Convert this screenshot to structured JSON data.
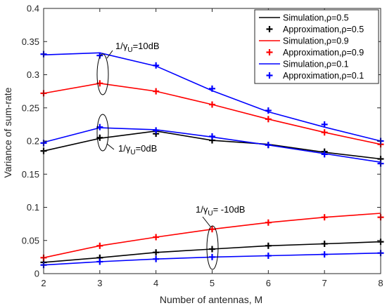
{
  "chart_data": {
    "type": "line",
    "xlabel": "Number of antennas, M",
    "ylabel": "Variance of sum-rate",
    "xlim": [
      2,
      8
    ],
    "ylim": [
      0,
      0.4
    ],
    "x_ticks": [
      "2",
      "3",
      "4",
      "5",
      "6",
      "7",
      "8"
    ],
    "y_ticks": [
      "0",
      "0.05",
      "0.1",
      "0.15",
      "0.2",
      "0.25",
      "0.3",
      "0.35",
      "0.4"
    ],
    "x": [
      2,
      3,
      4,
      5,
      6,
      7,
      8
    ],
    "grid": false,
    "legend_position": "top-right",
    "legend": [
      {
        "label": "Simulation,ρ=0.5",
        "color": "#000000",
        "kind": "line"
      },
      {
        "label": "Approximation,ρ=0.5",
        "color": "#000000",
        "kind": "marker"
      },
      {
        "label": "Simulation,ρ=0.9",
        "color": "#ff0000",
        "kind": "line"
      },
      {
        "label": "Approximation,ρ=0.9",
        "color": "#ff0000",
        "kind": "marker"
      },
      {
        "label": "Simulation,ρ=0.1",
        "color": "#0000ff",
        "kind": "line"
      },
      {
        "label": "Approximation,ρ=0.1",
        "color": "#0000ff",
        "kind": "marker"
      }
    ],
    "groups": [
      {
        "annotation": "1/γU=10dB",
        "series": [
          {
            "color": "#000000",
            "simulation": [],
            "approximation": []
          },
          {
            "color": "#ff0000",
            "simulation": [
              0.272,
              0.287,
              0.275,
              0.255,
              0.233,
              0.213,
              0.195
            ],
            "approximation": [
              0.272,
              0.287,
              0.275,
              0.255,
              0.233,
              0.213,
              0.195
            ]
          },
          {
            "color": "#0000ff",
            "simulation": [
              0.33,
              0.333,
              0.313,
              0.276,
              0.244,
              0.221,
              0.2
            ],
            "approximation": [
              0.331,
              0.329,
              0.314,
              0.279,
              0.246,
              0.225,
              0.2
            ]
          }
        ]
      },
      {
        "annotation": "1/γU=0dB",
        "series": [
          {
            "color": "#000000",
            "simulation": [
              0.185,
              0.204,
              0.215,
              0.201,
              0.195,
              0.183,
              0.173
            ],
            "approximation": [
              0.185,
              0.205,
              0.211,
              0.201,
              0.194,
              0.184,
              0.173
            ]
          },
          {
            "color": "#ff0000",
            "simulation": [],
            "approximation": []
          },
          {
            "color": "#0000ff",
            "simulation": [
              0.198,
              0.22,
              0.217,
              0.206,
              0.194,
              0.181,
              0.168
            ],
            "approximation": [
              0.197,
              0.221,
              0.216,
              0.207,
              0.194,
              0.18,
              0.166
            ]
          }
        ]
      },
      {
        "annotation": "1/γU= -10dB",
        "series": [
          {
            "color": "#000000",
            "simulation": [
              0.017,
              0.024,
              0.032,
              0.037,
              0.042,
              0.045,
              0.048
            ],
            "approximation": [
              0.017,
              0.024,
              0.032,
              0.037,
              0.042,
              0.045,
              0.048
            ]
          },
          {
            "color": "#ff0000",
            "simulation": [
              0.024,
              0.042,
              0.055,
              0.067,
              0.077,
              0.085,
              0.091
            ],
            "approximation": [
              0.024,
              0.042,
              0.055,
              0.067,
              0.077,
              0.085,
              0.085
            ]
          },
          {
            "color": "#0000ff",
            "simulation": [
              0.013,
              0.018,
              0.022,
              0.025,
              0.027,
              0.029,
              0.031
            ],
            "approximation": [
              0.013,
              0.018,
              0.022,
              0.025,
              0.027,
              0.029,
              0.031
            ]
          }
        ]
      }
    ]
  }
}
